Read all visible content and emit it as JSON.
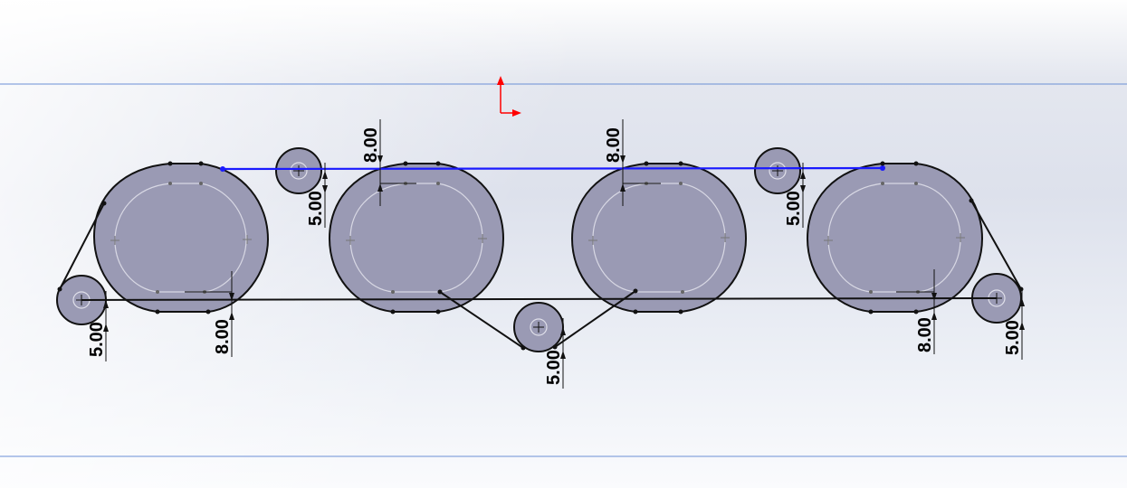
{
  "viewport": {
    "background": "#dfe3ee",
    "boundary_color": "#6b8fd6",
    "selected_color": "#1a1aff",
    "origin_color": "#ff0000"
  },
  "dimensions": {
    "bottom_left_8": "8.00",
    "bottom_left_5": "5.00",
    "top_left_8": "8.00",
    "top_left_5": "5.00",
    "top_mid_8": "8.00",
    "bottom_mid_5": "5.00",
    "top_right_5": "5.00",
    "bottom_right_8": "8.00",
    "bottom_right_5": "5.00"
  }
}
